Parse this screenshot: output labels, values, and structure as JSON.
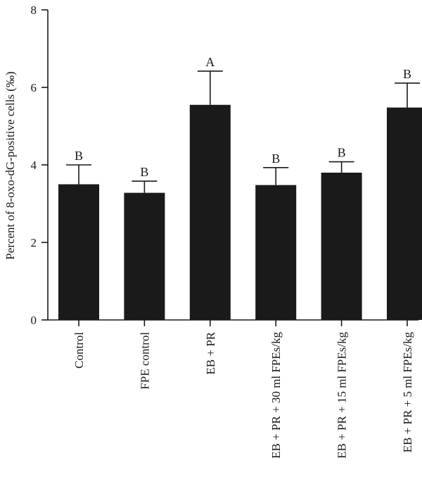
{
  "chart_data": {
    "type": "bar",
    "ylabel": "Percent of 8-oxo-dG-positive cells (‰)",
    "xlabel": "",
    "ylim": [
      0,
      8
    ],
    "yticks": [
      0,
      2,
      4,
      6,
      8
    ],
    "grid": false,
    "categories": [
      "Control",
      "FPE control",
      "EB + PR",
      "EB + PR + 30 ml FPEs/kg",
      "EB + PR + 15 ml FPEs/kg",
      "EB + PR + 5 ml FPEs/kg"
    ],
    "values": [
      3.5,
      3.28,
      5.55,
      3.48,
      3.8,
      5.48
    ],
    "errors": [
      0.5,
      0.3,
      0.87,
      0.45,
      0.28,
      0.63
    ],
    "significance": [
      "B",
      "B",
      "A",
      "B",
      "B",
      "B"
    ],
    "bar_color": "#1a1a1a"
  }
}
